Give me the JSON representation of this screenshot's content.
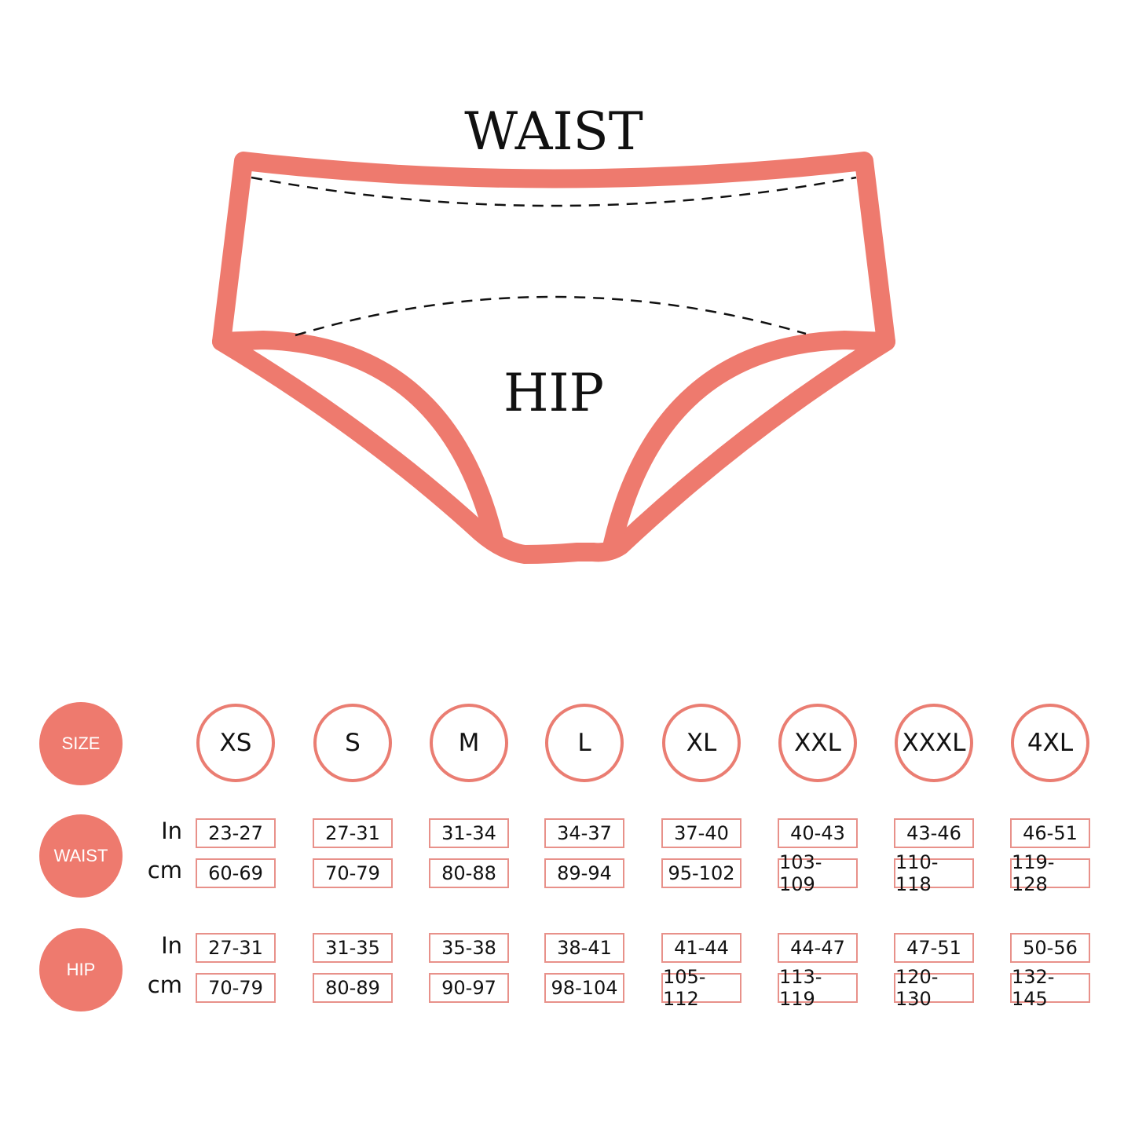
{
  "diagram": {
    "waist_label": "WAIST",
    "hip_label": "HIP",
    "accent_color": "#ee7a6e"
  },
  "table": {
    "size_label": "SIZE",
    "waist_label": "WAIST",
    "hip_label": "HIP",
    "unit_in": "In",
    "unit_cm": "cm",
    "sizes": [
      "XS",
      "S",
      "M",
      "L",
      "XL",
      "XXL",
      "XXXL",
      "4XL"
    ],
    "waist_in": [
      "23-27",
      "27-31",
      "31-34",
      "34-37",
      "37-40",
      "40-43",
      "43-46",
      "46-51"
    ],
    "waist_cm": [
      "60-69",
      "70-79",
      "80-88",
      "89-94",
      "95-102",
      "103-109",
      "110-118",
      "119-128"
    ],
    "hip_in": [
      "27-31",
      "31-35",
      "35-38",
      "38-41",
      "41-44",
      "44-47",
      "47-51",
      "50-56"
    ],
    "hip_cm": [
      "70-79",
      "80-89",
      "90-97",
      "98-104",
      "105-112",
      "113-119",
      "120-130",
      "132-145"
    ]
  }
}
